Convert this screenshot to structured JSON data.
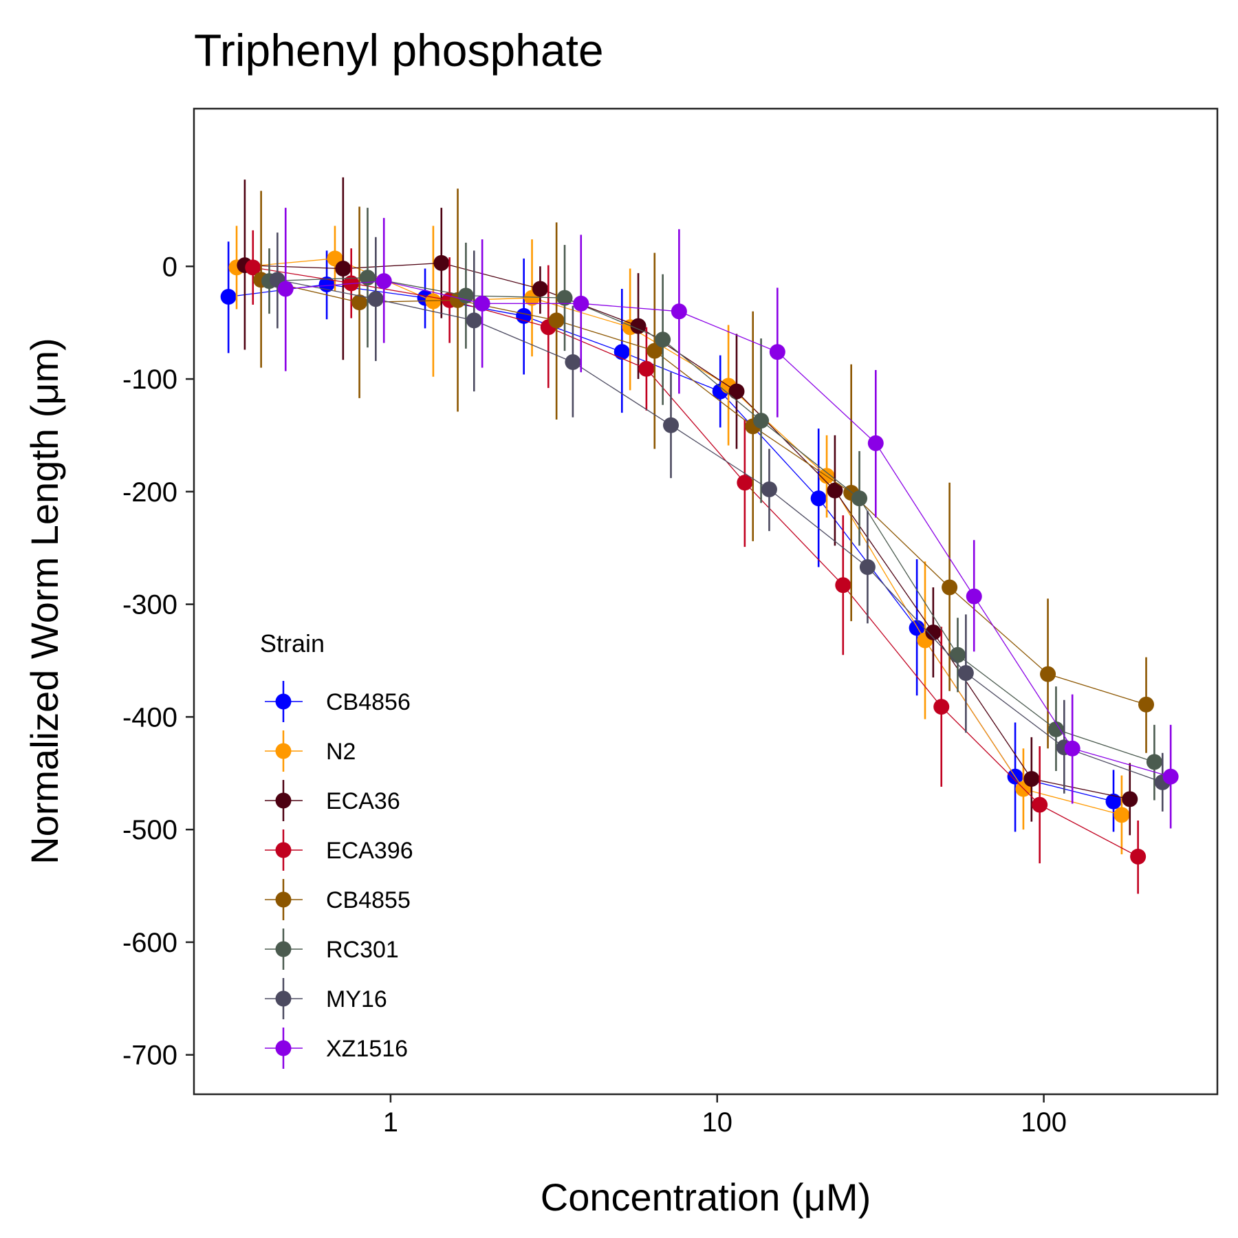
{
  "chart_data": {
    "type": "scatter",
    "title": "Triphenyl phosphate",
    "xlabel": "Concentration (μM)",
    "ylabel": "Normalized Worm Length (μm)",
    "x_scale": "log10",
    "xlim": [
      0.25,
      340
    ],
    "ylim": [
      -735,
      140
    ],
    "x_ticks": [
      1,
      10,
      100
    ],
    "x_tick_labels": [
      "1",
      "10",
      "100"
    ],
    "y_ticks": [
      0,
      -100,
      -200,
      -300,
      -400,
      -500,
      -600,
      -700
    ],
    "y_tick_labels": [
      "0",
      "-100",
      "-200",
      "-300",
      "-400",
      "-500",
      "-600",
      "-700"
    ],
    "grid": false,
    "legend": {
      "title": "Strain",
      "position": "bottom-left inside"
    },
    "error_bars": "vertical",
    "connected_by_lines": true,
    "series": [
      {
        "name": "CB4856",
        "color": "#0000FF",
        "points": [
          {
            "x": 0.39,
            "y": -27,
            "lo": -77,
            "hi": 22
          },
          {
            "x": 0.78,
            "y": -16,
            "lo": -47,
            "hi": 14
          },
          {
            "x": 1.56,
            "y": -28,
            "lo": -55,
            "hi": -2
          },
          {
            "x": 3.13,
            "y": -44,
            "lo": -96,
            "hi": 7
          },
          {
            "x": 6.25,
            "y": -76,
            "lo": -130,
            "hi": -20
          },
          {
            "x": 12.5,
            "y": -111,
            "lo": -143,
            "hi": -79
          },
          {
            "x": 25,
            "y": -206,
            "lo": -267,
            "hi": -144
          },
          {
            "x": 50,
            "y": -321,
            "lo": -381,
            "hi": -260
          },
          {
            "x": 100,
            "y": -453,
            "lo": -502,
            "hi": -405
          },
          {
            "x": 200,
            "y": -475,
            "lo": -502,
            "hi": -447
          }
        ]
      },
      {
        "name": "N2",
        "color": "#FF9900",
        "points": [
          {
            "x": 0.39,
            "y": -1,
            "lo": -38,
            "hi": 36
          },
          {
            "x": 0.78,
            "y": 7,
            "lo": -22,
            "hi": 36
          },
          {
            "x": 1.56,
            "y": -31,
            "lo": -98,
            "hi": 36
          },
          {
            "x": 3.13,
            "y": -28,
            "lo": -80,
            "hi": 24
          },
          {
            "x": 6.25,
            "y": -54,
            "lo": -110,
            "hi": -2
          },
          {
            "x": 12.5,
            "y": -106,
            "lo": -159,
            "hi": -52
          },
          {
            "x": 25,
            "y": -186,
            "lo": -223,
            "hi": -150
          },
          {
            "x": 50,
            "y": -332,
            "lo": -402,
            "hi": -262
          },
          {
            "x": 100,
            "y": -464,
            "lo": -500,
            "hi": -428
          },
          {
            "x": 200,
            "y": -487,
            "lo": -522,
            "hi": -452
          }
        ]
      },
      {
        "name": "ECA36",
        "color": "#4D0011",
        "points": [
          {
            "x": 0.39,
            "y": 1,
            "lo": -74,
            "hi": 77
          },
          {
            "x": 0.78,
            "y": -2,
            "lo": -83,
            "hi": 79
          },
          {
            "x": 1.56,
            "y": 3,
            "lo": -46,
            "hi": 52
          },
          {
            "x": 3.13,
            "y": -20,
            "lo": -42,
            "hi": 0
          },
          {
            "x": 6.25,
            "y": -53,
            "lo": -100,
            "hi": -6
          },
          {
            "x": 12.5,
            "y": -111,
            "lo": -162,
            "hi": -60
          },
          {
            "x": 25,
            "y": -199,
            "lo": -248,
            "hi": -150
          },
          {
            "x": 50,
            "y": -325,
            "lo": -365,
            "hi": -285
          },
          {
            "x": 100,
            "y": -455,
            "lo": -493,
            "hi": -418
          },
          {
            "x": 200,
            "y": -473,
            "lo": -505,
            "hi": -441
          }
        ]
      },
      {
        "name": "ECA396",
        "color": "#C1001F",
        "points": [
          {
            "x": 0.39,
            "y": -1,
            "lo": -34,
            "hi": 32
          },
          {
            "x": 0.78,
            "y": -15,
            "lo": -46,
            "hi": 16
          },
          {
            "x": 1.56,
            "y": -30,
            "lo": -68,
            "hi": 8
          },
          {
            "x": 3.13,
            "y": -54,
            "lo": -108,
            "hi": 1
          },
          {
            "x": 6.25,
            "y": -91,
            "lo": -128,
            "hi": -54
          },
          {
            "x": 12.5,
            "y": -192,
            "lo": -249,
            "hi": -136
          },
          {
            "x": 25,
            "y": -283,
            "lo": -345,
            "hi": -221
          },
          {
            "x": 50,
            "y": -391,
            "lo": -462,
            "hi": -320
          },
          {
            "x": 100,
            "y": -478,
            "lo": -530,
            "hi": -426
          },
          {
            "x": 200,
            "y": -524,
            "lo": -557,
            "hi": -492
          }
        ]
      },
      {
        "name": "CB4855",
        "color": "#8C5600",
        "points": [
          {
            "x": 0.39,
            "y": -12,
            "lo": -90,
            "hi": 67
          },
          {
            "x": 0.78,
            "y": -32,
            "lo": -117,
            "hi": 53
          },
          {
            "x": 1.56,
            "y": -30,
            "lo": -129,
            "hi": 69
          },
          {
            "x": 3.13,
            "y": -48,
            "lo": -136,
            "hi": 39
          },
          {
            "x": 6.25,
            "y": -75,
            "lo": -162,
            "hi": 12
          },
          {
            "x": 12.5,
            "y": -142,
            "lo": -244,
            "hi": -40
          },
          {
            "x": 25,
            "y": -201,
            "lo": -315,
            "hi": -87
          },
          {
            "x": 50,
            "y": -285,
            "lo": -377,
            "hi": -192
          },
          {
            "x": 100,
            "y": -362,
            "lo": -428,
            "hi": -295
          },
          {
            "x": 200,
            "y": -389,
            "lo": -432,
            "hi": -347
          }
        ]
      },
      {
        "name": "RC301",
        "color": "#4B5B4F",
        "points": [
          {
            "x": 0.39,
            "y": -13,
            "lo": -42,
            "hi": 16
          },
          {
            "x": 0.78,
            "y": -10,
            "lo": -72,
            "hi": 52
          },
          {
            "x": 1.56,
            "y": -26,
            "lo": -73,
            "hi": 21
          },
          {
            "x": 3.13,
            "y": -28,
            "lo": -75,
            "hi": 19
          },
          {
            "x": 6.25,
            "y": -65,
            "lo": -123,
            "hi": -7
          },
          {
            "x": 12.5,
            "y": -137,
            "lo": -210,
            "hi": -64
          },
          {
            "x": 25,
            "y": -206,
            "lo": -248,
            "hi": -164
          },
          {
            "x": 50,
            "y": -345,
            "lo": -378,
            "hi": -312
          },
          {
            "x": 100,
            "y": -411,
            "lo": -448,
            "hi": -373
          },
          {
            "x": 200,
            "y": -440,
            "lo": -474,
            "hi": -407
          }
        ]
      },
      {
        "name": "MY16",
        "color": "#4C4A60",
        "points": [
          {
            "x": 0.39,
            "y": -12,
            "lo": -55,
            "hi": 30
          },
          {
            "x": 0.78,
            "y": -29,
            "lo": -84,
            "hi": 26
          },
          {
            "x": 1.56,
            "y": -48,
            "lo": -111,
            "hi": 14
          },
          {
            "x": 3.13,
            "y": -85,
            "lo": -134,
            "hi": -35
          },
          {
            "x": 6.25,
            "y": -141,
            "lo": -188,
            "hi": -94
          },
          {
            "x": 12.5,
            "y": -198,
            "lo": -235,
            "hi": -162
          },
          {
            "x": 25,
            "y": -267,
            "lo": -317,
            "hi": -217
          },
          {
            "x": 50,
            "y": -361,
            "lo": -414,
            "hi": -309
          },
          {
            "x": 100,
            "y": -427,
            "lo": -468,
            "hi": -385
          },
          {
            "x": 200,
            "y": -458,
            "lo": -484,
            "hi": -432
          }
        ]
      },
      {
        "name": "XZ1516",
        "color": "#8A00E6",
        "points": [
          {
            "x": 0.39,
            "y": -20,
            "lo": -93,
            "hi": 52
          },
          {
            "x": 0.78,
            "y": -13,
            "lo": -68,
            "hi": 43
          },
          {
            "x": 1.56,
            "y": -33,
            "lo": -90,
            "hi": 24
          },
          {
            "x": 3.13,
            "y": -33,
            "lo": -94,
            "hi": 28
          },
          {
            "x": 6.25,
            "y": -40,
            "lo": -113,
            "hi": 33
          },
          {
            "x": 12.5,
            "y": -76,
            "lo": -134,
            "hi": -19
          },
          {
            "x": 25,
            "y": -157,
            "lo": -223,
            "hi": -92
          },
          {
            "x": 50,
            "y": -293,
            "lo": -342,
            "hi": -243
          },
          {
            "x": 100,
            "y": -428,
            "lo": -477,
            "hi": -380
          },
          {
            "x": 200,
            "y": -453,
            "lo": -499,
            "hi": -407
          }
        ]
      }
    ]
  }
}
